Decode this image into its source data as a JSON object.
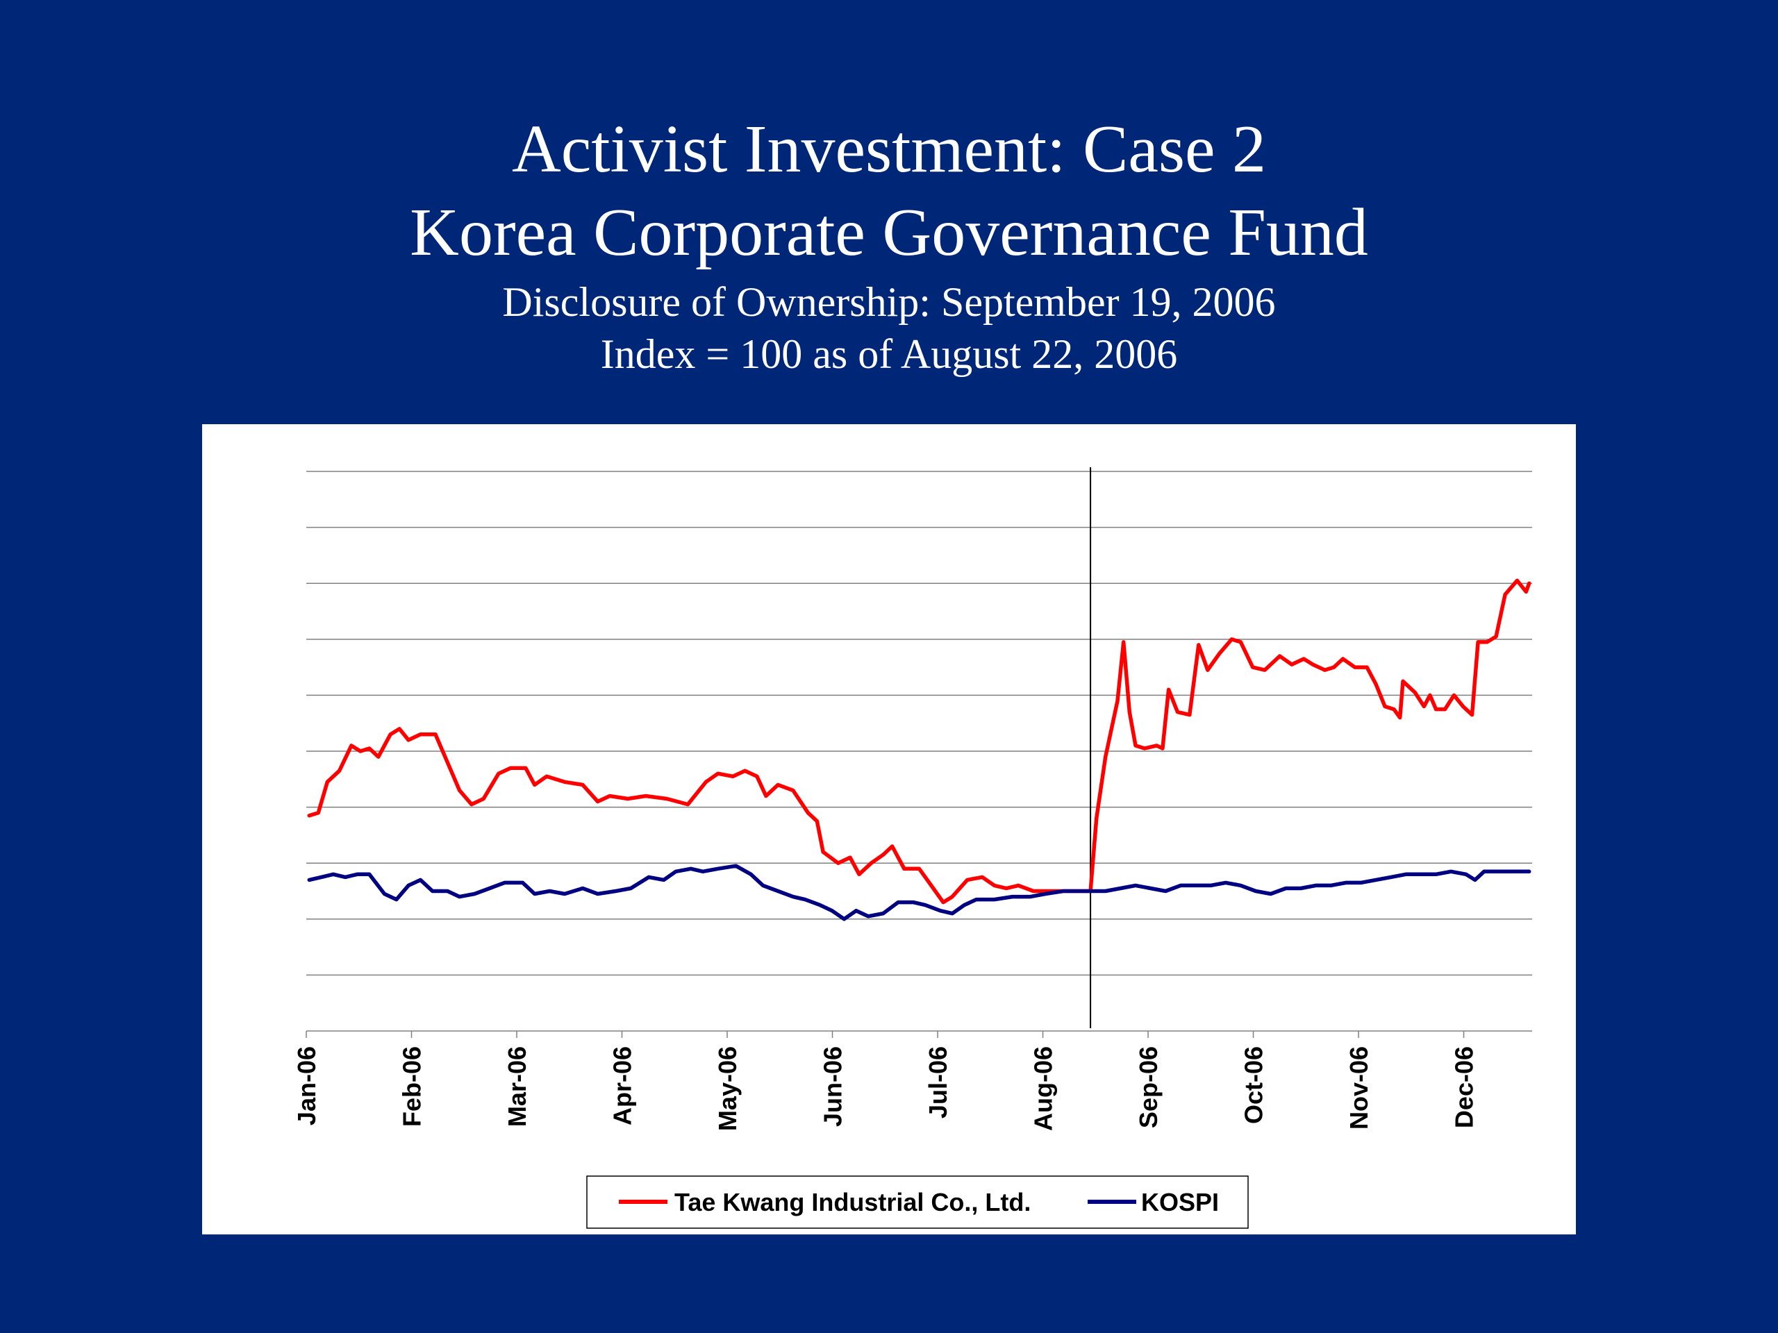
{
  "slide": {
    "title_line1": "Activist Investment: Case 2",
    "title_line2": "Korea Corporate Governance Fund",
    "subtitle_line1": "Disclosure of Ownership: September 19, 2006",
    "subtitle_line2": "Index = 100 as of August 22, 2006"
  },
  "colors": {
    "background": "#002677",
    "tae_kwang": "#ff0000",
    "kospi": "#000080",
    "gridline": "#808080",
    "event_line": "#000000"
  },
  "chart_data": {
    "type": "line",
    "title": "",
    "xlabel": "",
    "ylabel": "",
    "x_tick_labels": [
      "Jan-06",
      "Feb-06",
      "Mar-06",
      "Apr-06",
      "May-06",
      "Jun-06",
      "Jul-06",
      "Aug-06",
      "Sep-06",
      "Oct-06",
      "Nov-06",
      "Dec-06"
    ],
    "y_tick_labels_shown": false,
    "grid": true,
    "ylim": [
      0,
      10
    ],
    "event_marker": {
      "date": "2006-09-19",
      "label": ""
    },
    "legend_position": "bottom",
    "series": [
      {
        "name": "Tae Kwang Industrial Co., Ltd.",
        "color": "#ff0000",
        "points": [
          [
            "2006-01-02",
            3.85
          ],
          [
            "2006-01-05",
            3.9
          ],
          [
            "2006-01-08",
            4.45
          ],
          [
            "2006-01-12",
            4.65
          ],
          [
            "2006-01-16",
            5.1
          ],
          [
            "2006-01-19",
            5.0
          ],
          [
            "2006-01-22",
            5.05
          ],
          [
            "2006-01-25",
            4.9
          ],
          [
            "2006-01-29",
            5.3
          ],
          [
            "2006-02-01",
            5.4
          ],
          [
            "2006-02-04",
            5.2
          ],
          [
            "2006-02-08",
            5.3
          ],
          [
            "2006-02-13",
            5.3
          ],
          [
            "2006-02-17",
            4.8
          ],
          [
            "2006-02-21",
            4.3
          ],
          [
            "2006-02-25",
            4.05
          ],
          [
            "2006-03-01",
            4.15
          ],
          [
            "2006-03-06",
            4.6
          ],
          [
            "2006-03-10",
            4.7
          ],
          [
            "2006-03-15",
            4.7
          ],
          [
            "2006-03-18",
            4.4
          ],
          [
            "2006-03-22",
            4.55
          ],
          [
            "2006-03-28",
            4.45
          ],
          [
            "2006-04-03",
            4.4
          ],
          [
            "2006-04-08",
            4.1
          ],
          [
            "2006-04-12",
            4.2
          ],
          [
            "2006-04-18",
            4.15
          ],
          [
            "2006-04-24",
            4.2
          ],
          [
            "2006-05-01",
            4.15
          ],
          [
            "2006-05-08",
            4.05
          ],
          [
            "2006-05-14",
            4.45
          ],
          [
            "2006-05-18",
            4.6
          ],
          [
            "2006-05-23",
            4.55
          ],
          [
            "2006-05-27",
            4.65
          ],
          [
            "2006-05-31",
            4.55
          ],
          [
            "2006-06-03",
            4.2
          ],
          [
            "2006-06-07",
            4.4
          ],
          [
            "2006-06-12",
            4.3
          ],
          [
            "2006-06-17",
            3.9
          ],
          [
            "2006-06-20",
            3.75
          ],
          [
            "2006-06-22",
            3.2
          ],
          [
            "2006-06-27",
            3.0
          ],
          [
            "2006-07-01",
            3.1
          ],
          [
            "2006-07-04",
            2.8
          ],
          [
            "2006-07-08",
            3.0
          ],
          [
            "2006-07-12",
            3.15
          ],
          [
            "2006-07-15",
            3.3
          ],
          [
            "2006-07-19",
            2.9
          ],
          [
            "2006-07-24",
            2.9
          ],
          [
            "2006-07-28",
            2.6
          ],
          [
            "2006-08-01",
            2.3
          ],
          [
            "2006-08-04",
            2.4
          ],
          [
            "2006-08-09",
            2.7
          ],
          [
            "2006-08-14",
            2.75
          ],
          [
            "2006-08-18",
            2.6
          ],
          [
            "2006-08-22",
            2.55
          ],
          [
            "2006-08-26",
            2.6
          ],
          [
            "2006-08-31",
            2.5
          ],
          [
            "2006-09-08",
            2.5
          ],
          [
            "2006-09-14",
            2.5
          ],
          [
            "2006-09-19",
            2.5
          ],
          [
            "2006-09-21",
            3.8
          ],
          [
            "2006-09-24",
            4.9
          ],
          [
            "2006-09-28",
            5.9
          ],
          [
            "2006-09-30",
            6.95
          ],
          [
            "2006-10-02",
            5.7
          ],
          [
            "2006-10-04",
            5.1
          ],
          [
            "2006-10-07",
            5.05
          ],
          [
            "2006-10-11",
            5.1
          ],
          [
            "2006-10-13",
            5.05
          ],
          [
            "2006-10-15",
            6.1
          ],
          [
            "2006-10-18",
            5.7
          ],
          [
            "2006-10-22",
            5.65
          ],
          [
            "2006-10-25",
            6.9
          ],
          [
            "2006-10-28",
            6.45
          ],
          [
            "2006-11-01",
            6.75
          ],
          [
            "2006-11-05",
            7.0
          ],
          [
            "2006-11-08",
            6.95
          ],
          [
            "2006-11-12",
            6.5
          ],
          [
            "2006-11-16",
            6.45
          ],
          [
            "2006-11-18",
            6.55
          ],
          [
            "2006-11-21",
            6.7
          ],
          [
            "2006-11-25",
            6.55
          ],
          [
            "2006-11-29",
            6.65
          ],
          [
            "2006-12-02",
            6.55
          ],
          [
            "2006-12-06",
            6.45
          ],
          [
            "2006-12-09",
            6.5
          ],
          [
            "2006-12-12",
            6.65
          ],
          [
            "2006-12-16",
            6.5
          ],
          [
            "2006-12-20",
            6.5
          ],
          [
            "2006-12-23",
            6.2
          ],
          [
            "2006-12-26",
            5.8
          ],
          [
            "2006-12-29",
            5.75
          ],
          [
            "2006-12-31",
            5.6
          ],
          [
            "2007-01-01",
            6.25
          ],
          [
            "2007-01-05",
            6.05
          ],
          [
            "2007-01-08",
            5.8
          ],
          [
            "2007-01-10",
            6.0
          ],
          [
            "2007-01-12",
            5.75
          ],
          [
            "2007-01-15",
            5.75
          ],
          [
            "2007-01-18",
            6.0
          ],
          [
            "2007-01-21",
            5.8
          ],
          [
            "2007-01-24",
            5.65
          ],
          [
            "2007-01-26",
            6.95
          ],
          [
            "2007-01-29",
            6.95
          ],
          [
            "2007-02-01",
            7.05
          ],
          [
            "2007-02-04",
            7.8
          ],
          [
            "2007-02-08",
            8.05
          ],
          [
            "2007-02-11",
            7.85
          ],
          [
            "2007-02-12",
            8.0
          ]
        ]
      },
      {
        "name": "KOSPI",
        "color": "#000080",
        "points": [
          [
            "2006-01-02",
            2.7
          ],
          [
            "2006-01-06",
            2.75
          ],
          [
            "2006-01-10",
            2.8
          ],
          [
            "2006-01-14",
            2.75
          ],
          [
            "2006-01-18",
            2.8
          ],
          [
            "2006-01-22",
            2.8
          ],
          [
            "2006-01-27",
            2.45
          ],
          [
            "2006-01-31",
            2.35
          ],
          [
            "2006-02-04",
            2.6
          ],
          [
            "2006-02-08",
            2.7
          ],
          [
            "2006-02-12",
            2.5
          ],
          [
            "2006-02-17",
            2.5
          ],
          [
            "2006-02-21",
            2.4
          ],
          [
            "2006-02-26",
            2.45
          ],
          [
            "2006-03-03",
            2.55
          ],
          [
            "2006-03-08",
            2.65
          ],
          [
            "2006-03-14",
            2.65
          ],
          [
            "2006-03-18",
            2.45
          ],
          [
            "2006-03-23",
            2.5
          ],
          [
            "2006-03-28",
            2.45
          ],
          [
            "2006-04-03",
            2.55
          ],
          [
            "2006-04-08",
            2.45
          ],
          [
            "2006-04-14",
            2.5
          ],
          [
            "2006-04-19",
            2.55
          ],
          [
            "2006-04-25",
            2.75
          ],
          [
            "2006-04-30",
            2.7
          ],
          [
            "2006-05-04",
            2.85
          ],
          [
            "2006-05-09",
            2.9
          ],
          [
            "2006-05-13",
            2.85
          ],
          [
            "2006-05-18",
            2.9
          ],
          [
            "2006-05-24",
            2.95
          ],
          [
            "2006-05-29",
            2.8
          ],
          [
            "2006-06-02",
            2.6
          ],
          [
            "2006-06-07",
            2.5
          ],
          [
            "2006-06-12",
            2.4
          ],
          [
            "2006-06-16",
            2.35
          ],
          [
            "2006-06-21",
            2.25
          ],
          [
            "2006-06-25",
            2.15
          ],
          [
            "2006-06-29",
            2.0
          ],
          [
            "2006-07-03",
            2.15
          ],
          [
            "2006-07-07",
            2.05
          ],
          [
            "2006-07-12",
            2.1
          ],
          [
            "2006-07-17",
            2.3
          ],
          [
            "2006-07-22",
            2.3
          ],
          [
            "2006-07-26",
            2.25
          ],
          [
            "2006-07-31",
            2.15
          ],
          [
            "2006-08-04",
            2.1
          ],
          [
            "2006-08-08",
            2.25
          ],
          [
            "2006-08-12",
            2.35
          ],
          [
            "2006-08-18",
            2.35
          ],
          [
            "2006-08-24",
            2.4
          ],
          [
            "2006-08-30",
            2.4
          ],
          [
            "2006-09-04",
            2.45
          ],
          [
            "2006-09-10",
            2.5
          ],
          [
            "2006-09-15",
            2.5
          ],
          [
            "2006-09-19",
            2.5
          ],
          [
            "2006-09-24",
            2.5
          ],
          [
            "2006-09-29",
            2.55
          ],
          [
            "2006-10-04",
            2.6
          ],
          [
            "2006-10-09",
            2.55
          ],
          [
            "2006-10-14",
            2.5
          ],
          [
            "2006-10-19",
            2.6
          ],
          [
            "2006-10-24",
            2.6
          ],
          [
            "2006-10-29",
            2.6
          ],
          [
            "2006-11-03",
            2.65
          ],
          [
            "2006-11-08",
            2.6
          ],
          [
            "2006-11-13",
            2.5
          ],
          [
            "2006-11-18",
            2.45
          ],
          [
            "2006-11-23",
            2.55
          ],
          [
            "2006-11-28",
            2.55
          ],
          [
            "2006-12-03",
            2.6
          ],
          [
            "2006-12-08",
            2.6
          ],
          [
            "2006-12-13",
            2.65
          ],
          [
            "2006-12-18",
            2.65
          ],
          [
            "2006-12-23",
            2.7
          ],
          [
            "2006-12-28",
            2.75
          ],
          [
            "2007-01-02",
            2.8
          ],
          [
            "2007-01-07",
            2.8
          ],
          [
            "2007-01-12",
            2.8
          ],
          [
            "2007-01-17",
            2.85
          ],
          [
            "2007-01-22",
            2.8
          ],
          [
            "2007-01-25",
            2.7
          ],
          [
            "2007-01-28",
            2.85
          ],
          [
            "2007-02-02",
            2.85
          ],
          [
            "2007-02-07",
            2.85
          ],
          [
            "2007-02-12",
            2.85
          ]
        ]
      }
    ]
  }
}
